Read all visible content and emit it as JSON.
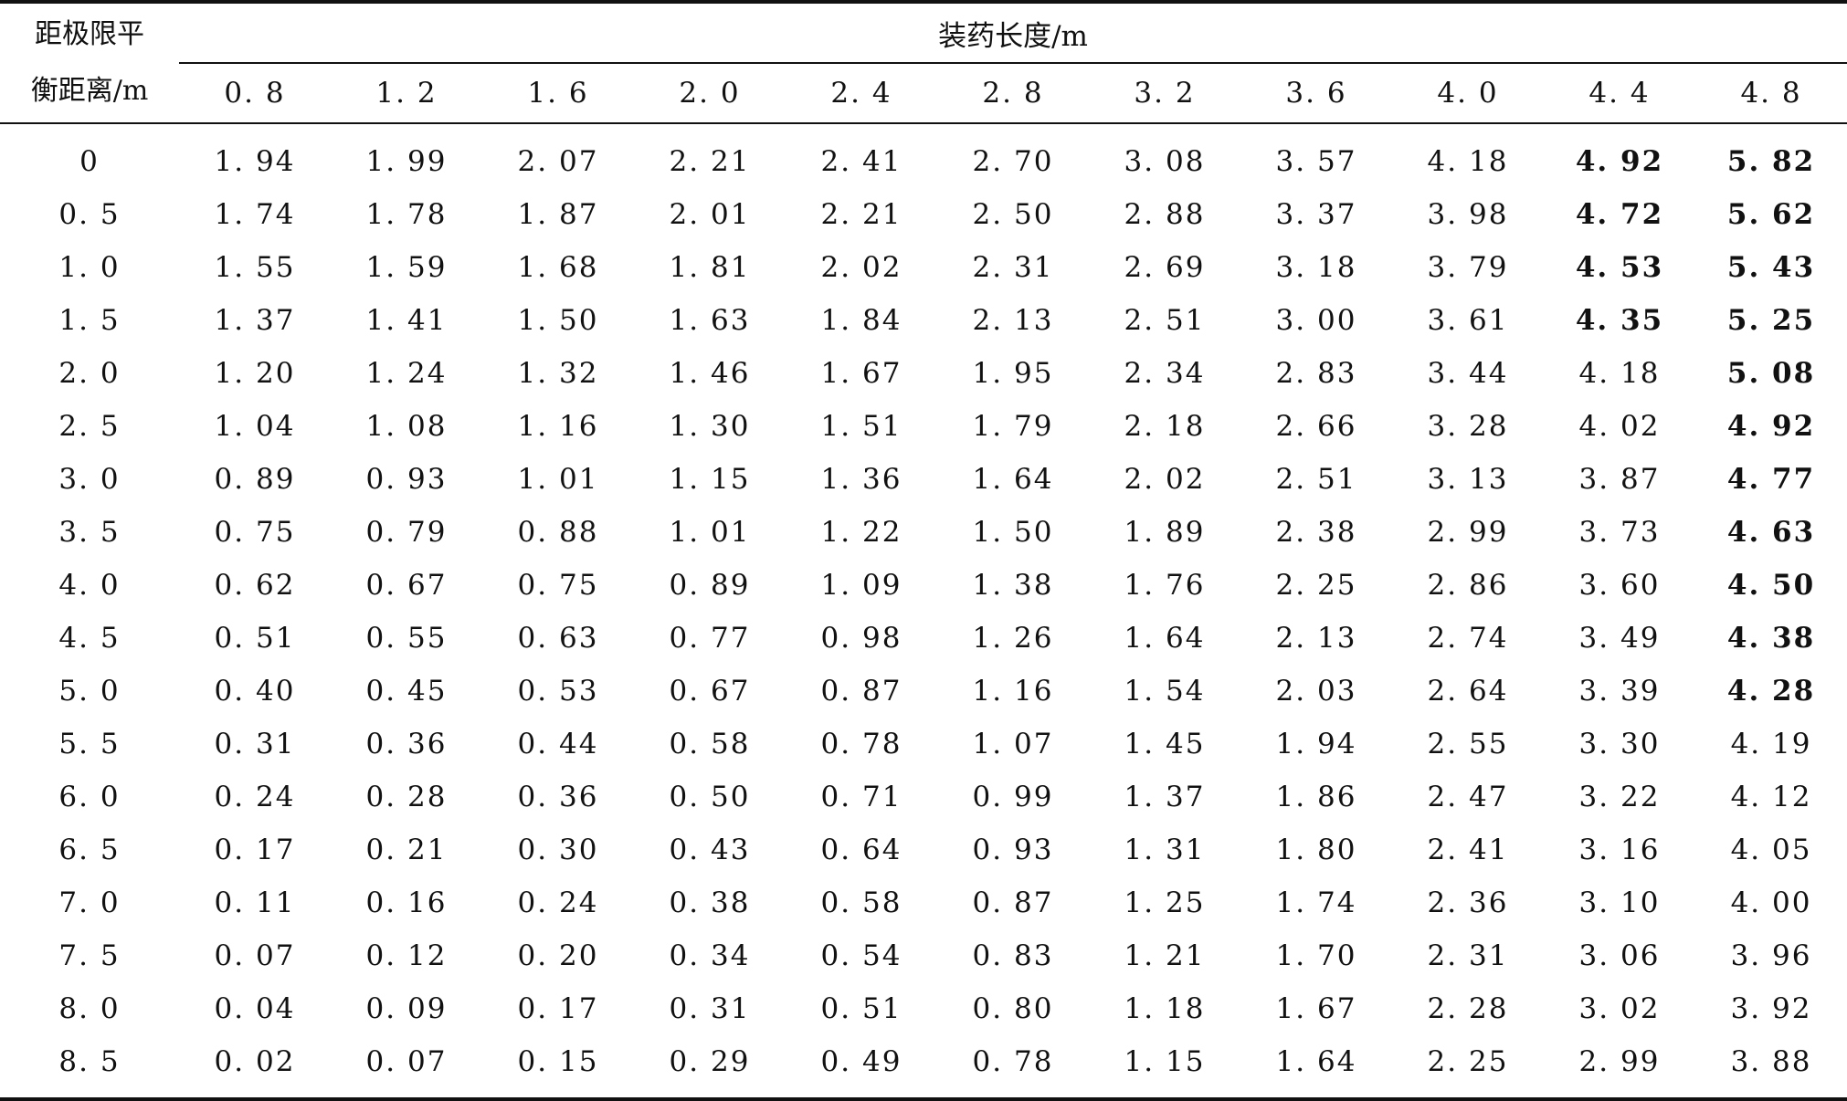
{
  "table": {
    "row_header_line1": "距极限平",
    "row_header_line2": "衡距离/m",
    "group_header": "装药长度/m",
    "columns": [
      "0. 8",
      "1. 2",
      "1. 6",
      "2. 0",
      "2. 4",
      "2. 8",
      "3. 2",
      "3. 6",
      "4. 0",
      "4. 4",
      "4. 8"
    ],
    "rows": [
      {
        "label": "0",
        "values": [
          "1. 94",
          "1. 99",
          "2. 07",
          "2. 21",
          "2. 41",
          "2. 70",
          "3. 08",
          "3. 57",
          "4. 18",
          "4. 92",
          "5. 82"
        ],
        "bold": [
          9,
          10
        ]
      },
      {
        "label": "0. 5",
        "values": [
          "1. 74",
          "1. 78",
          "1. 87",
          "2. 01",
          "2. 21",
          "2. 50",
          "2. 88",
          "3. 37",
          "3. 98",
          "4. 72",
          "5. 62"
        ],
        "bold": [
          9,
          10
        ]
      },
      {
        "label": "1. 0",
        "values": [
          "1. 55",
          "1. 59",
          "1. 68",
          "1. 81",
          "2. 02",
          "2. 31",
          "2. 69",
          "3. 18",
          "3. 79",
          "4. 53",
          "5. 43"
        ],
        "bold": [
          9,
          10
        ]
      },
      {
        "label": "1. 5",
        "values": [
          "1. 37",
          "1. 41",
          "1. 50",
          "1. 63",
          "1. 84",
          "2. 13",
          "2. 51",
          "3. 00",
          "3. 61",
          "4. 35",
          "5. 25"
        ],
        "bold": [
          9,
          10
        ]
      },
      {
        "label": "2. 0",
        "values": [
          "1. 20",
          "1. 24",
          "1. 32",
          "1. 46",
          "1. 67",
          "1. 95",
          "2. 34",
          "2. 83",
          "3. 44",
          "4. 18",
          "5. 08"
        ],
        "bold": [
          10
        ]
      },
      {
        "label": "2. 5",
        "values": [
          "1. 04",
          "1. 08",
          "1. 16",
          "1. 30",
          "1. 51",
          "1. 79",
          "2. 18",
          "2. 66",
          "3. 28",
          "4. 02",
          "4. 92"
        ],
        "bold": [
          10
        ]
      },
      {
        "label": "3. 0",
        "values": [
          "0. 89",
          "0. 93",
          "1. 01",
          "1. 15",
          "1. 36",
          "1. 64",
          "2. 02",
          "2. 51",
          "3. 13",
          "3. 87",
          "4. 77"
        ],
        "bold": [
          10
        ]
      },
      {
        "label": "3. 5",
        "values": [
          "0. 75",
          "0. 79",
          "0. 88",
          "1. 01",
          "1. 22",
          "1. 50",
          "1. 89",
          "2. 38",
          "2. 99",
          "3. 73",
          "4. 63"
        ],
        "bold": [
          10
        ]
      },
      {
        "label": "4. 0",
        "values": [
          "0. 62",
          "0. 67",
          "0. 75",
          "0. 89",
          "1. 09",
          "1. 38",
          "1. 76",
          "2. 25",
          "2. 86",
          "3. 60",
          "4. 50"
        ],
        "bold": [
          10
        ]
      },
      {
        "label": "4. 5",
        "values": [
          "0. 51",
          "0. 55",
          "0. 63",
          "0. 77",
          "0. 98",
          "1. 26",
          "1. 64",
          "2. 13",
          "2. 74",
          "3. 49",
          "4. 38"
        ],
        "bold": [
          10
        ]
      },
      {
        "label": "5. 0",
        "values": [
          "0. 40",
          "0. 45",
          "0. 53",
          "0. 67",
          "0. 87",
          "1. 16",
          "1. 54",
          "2. 03",
          "2. 64",
          "3. 39",
          "4. 28"
        ],
        "bold": [
          10
        ]
      },
      {
        "label": "5. 5",
        "values": [
          "0. 31",
          "0. 36",
          "0. 44",
          "0. 58",
          "0. 78",
          "1. 07",
          "1. 45",
          "1. 94",
          "2. 55",
          "3. 30",
          "4. 19"
        ],
        "bold": []
      },
      {
        "label": "6. 0",
        "values": [
          "0. 24",
          "0. 28",
          "0. 36",
          "0. 50",
          "0. 71",
          "0. 99",
          "1. 37",
          "1. 86",
          "2. 47",
          "3. 22",
          "4. 12"
        ],
        "bold": []
      },
      {
        "label": "6. 5",
        "values": [
          "0. 17",
          "0. 21",
          "0. 30",
          "0. 43",
          "0. 64",
          "0. 93",
          "1. 31",
          "1. 80",
          "2. 41",
          "3. 16",
          "4. 05"
        ],
        "bold": []
      },
      {
        "label": "7. 0",
        "values": [
          "0. 11",
          "0. 16",
          "0. 24",
          "0. 38",
          "0. 58",
          "0. 87",
          "1. 25",
          "1. 74",
          "2. 36",
          "3. 10",
          "4. 00"
        ],
        "bold": []
      },
      {
        "label": "7. 5",
        "values": [
          "0. 07",
          "0. 12",
          "0. 20",
          "0. 34",
          "0. 54",
          "0. 83",
          "1. 21",
          "1. 70",
          "2. 31",
          "3. 06",
          "3. 96"
        ],
        "bold": []
      },
      {
        "label": "8. 0",
        "values": [
          "0. 04",
          "0. 09",
          "0. 17",
          "0. 31",
          "0. 51",
          "0. 80",
          "1. 18",
          "1. 67",
          "2. 28",
          "3. 02",
          "3. 92"
        ],
        "bold": []
      },
      {
        "label": "8. 5",
        "values": [
          "0. 02",
          "0. 07",
          "0. 15",
          "0. 29",
          "0. 49",
          "0. 78",
          "1. 15",
          "1. 64",
          "2. 25",
          "2. 99",
          "3. 88"
        ],
        "bold": []
      }
    ]
  }
}
